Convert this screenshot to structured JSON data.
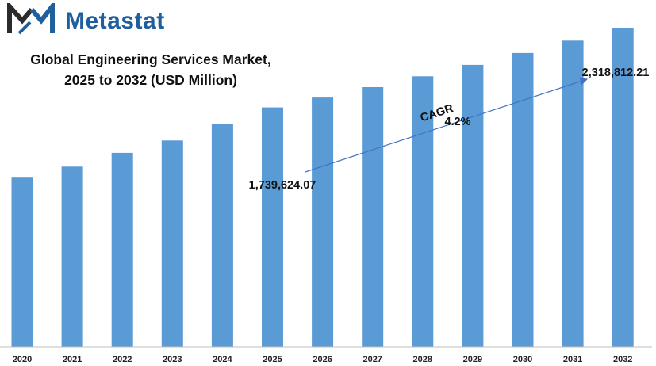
{
  "brand": {
    "name": "Metastat",
    "logo_icon": "metastat-m-logo-icon",
    "color": "#1f5f9e"
  },
  "title": {
    "line1": "Global Engineering Services Market,",
    "line2": "2025 to 2032 (USD Million)"
  },
  "annotations": {
    "start_label": "1,739,624.07",
    "end_label": "2,318,812.21",
    "cagr_label": "CAGR",
    "cagr_value": "4.2%"
  },
  "chart_data": {
    "type": "bar",
    "categories": [
      "2020",
      "2021",
      "2022",
      "2023",
      "2024",
      "2025",
      "2026",
      "2027",
      "2028",
      "2029",
      "2030",
      "2031",
      "2032"
    ],
    "values": [
      1230000,
      1310000,
      1410000,
      1500000,
      1620000,
      1739624.07,
      1812000,
      1887000,
      1966000,
      2049000,
      2135000,
      2225000,
      2318812.21
    ],
    "ylim": [
      0,
      2520000
    ],
    "bar_color": "#5b9bd5",
    "arrow_color": "#4472c4",
    "grid": false,
    "legend": "none"
  }
}
